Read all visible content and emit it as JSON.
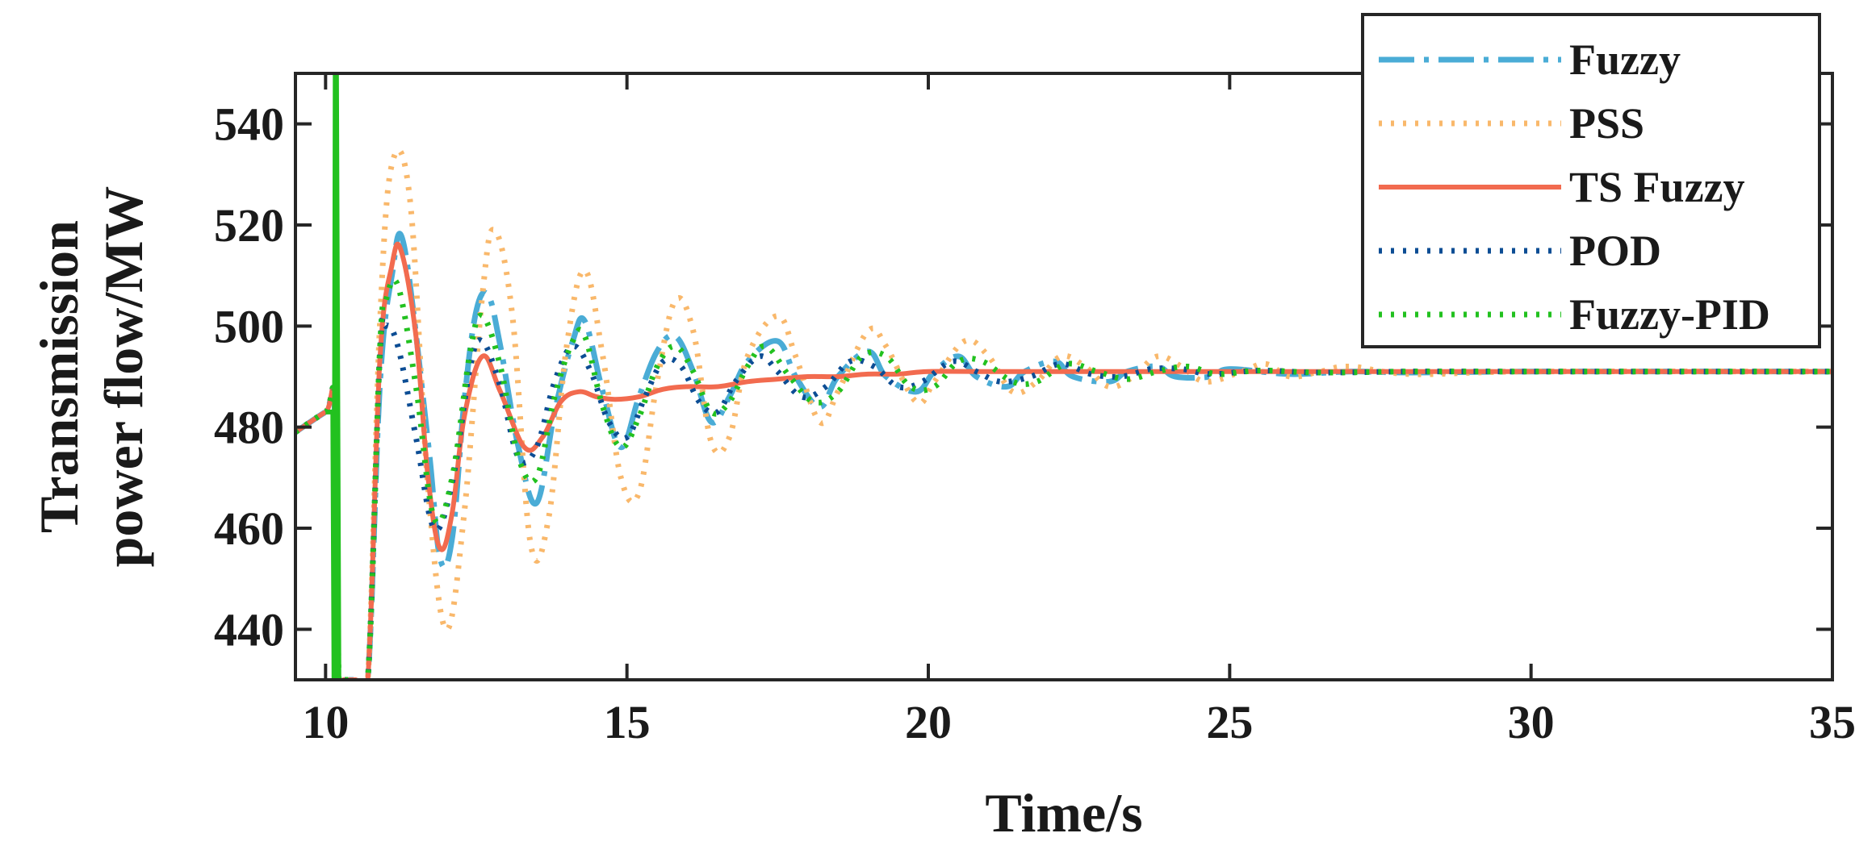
{
  "chart_data": {
    "type": "line",
    "title": "",
    "xlabel": "Time/s",
    "ylabel": [
      "Transmission",
      "power flow/MW"
    ],
    "xlim": [
      9.5,
      35
    ],
    "ylim": [
      430,
      550
    ],
    "xticks": [
      10,
      15,
      20,
      25,
      30,
      35
    ],
    "yticks": [
      440,
      460,
      480,
      500,
      520,
      540
    ],
    "grid": false,
    "legend_position": "top-right",
    "series": [
      {
        "name": "Fuzzy",
        "color": "#4AACD6",
        "style": "dash-dot",
        "x": [
          9.5,
          10.0,
          10.15,
          10.2,
          10.3,
          10.5,
          10.7,
          10.9,
          11.1,
          11.3,
          11.7,
          11.9,
          12.1,
          12.3,
          12.5,
          12.7,
          12.9,
          13.2,
          13.5,
          13.8,
          14.1,
          14.3,
          14.6,
          14.9,
          15.2,
          15.5,
          15.8,
          16.1,
          16.4,
          16.7,
          17.0,
          17.5,
          17.8,
          18.2,
          18.5,
          19.0,
          19.3,
          19.8,
          20.1,
          20.5,
          20.8,
          21.3,
          21.6,
          22.1,
          22.4,
          23.0,
          23.3,
          23.8,
          24.1,
          24.7,
          25.0,
          26.0,
          27.0,
          28.0,
          30.0,
          35.0
        ],
        "values": [
          479.0,
          483.0,
          483.5,
          430.0,
          430.0,
          430.0,
          430.0,
          488.0,
          510.0,
          516.0,
          477.0,
          454.0,
          458.0,
          485.0,
          503.0,
          506.0,
          496.0,
          476.0,
          465.0,
          483.0,
          497.0,
          501.0,
          487.0,
          476.0,
          486.0,
          495.0,
          498.0,
          491.0,
          481.0,
          486.0,
          493.0,
          497.0,
          490.0,
          484.0,
          490.0,
          495.0,
          490.0,
          487.0,
          491.0,
          494.0,
          490.0,
          488.0,
          491.0,
          493.0,
          490.0,
          489.0,
          491.0,
          492.0,
          490.0,
          490.0,
          491.5,
          490.5,
          491.0,
          490.8,
          491.0,
          491.0
        ]
      },
      {
        "name": "PSS",
        "color": "#F9B86B",
        "style": "dotted",
        "x": [
          9.5,
          10.0,
          10.15,
          10.2,
          10.3,
          10.5,
          10.7,
          10.9,
          11.1,
          11.4,
          11.7,
          12.0,
          12.3,
          12.6,
          12.8,
          13.1,
          13.4,
          13.7,
          14.0,
          14.3,
          14.6,
          14.9,
          15.2,
          15.5,
          15.8,
          16.1,
          16.4,
          16.7,
          17.0,
          17.5,
          17.8,
          18.2,
          18.5,
          19.0,
          19.3,
          19.8,
          20.1,
          20.6,
          21.0,
          21.4,
          21.8,
          22.2,
          22.6,
          23.0,
          23.4,
          23.8,
          24.2,
          24.6,
          25.2,
          25.6,
          26.0,
          26.5,
          27.0,
          28.0,
          30.0,
          35.0
        ],
        "values": [
          479.0,
          483.0,
          483.5,
          430.0,
          430.0,
          430.0,
          430.0,
          500.0,
          532.0,
          525.0,
          468.0,
          440.0,
          463.0,
          506.0,
          519.0,
          502.0,
          457.0,
          462.0,
          496.0,
          511.0,
          494.0,
          470.0,
          467.0,
          489.0,
          505.0,
          499.0,
          477.0,
          478.0,
          494.0,
          502.0,
          494.0,
          481.0,
          487.0,
          499.0,
          496.0,
          485.0,
          489.0,
          497.0,
          494.0,
          487.0,
          489.0,
          494.0,
          492.0,
          488.0,
          490.0,
          494.0,
          492.0,
          489.0,
          491.0,
          492.5,
          490.0,
          491.0,
          492.0,
          490.5,
          491.0,
          491.0
        ]
      },
      {
        "name": "TS Fuzzy",
        "color": "#F26B4F",
        "style": "solid",
        "x": [
          9.5,
          10.0,
          10.15,
          10.2,
          10.3,
          10.5,
          10.7,
          10.9,
          11.1,
          11.25,
          11.5,
          11.7,
          11.9,
          12.1,
          12.3,
          12.6,
          12.9,
          13.3,
          13.6,
          13.9,
          14.2,
          14.5,
          14.8,
          15.2,
          15.6,
          16.0,
          16.5,
          17.0,
          17.5,
          18.0,
          18.5,
          19.0,
          19.5,
          20.0,
          21.0,
          22.0,
          23.0,
          24.0,
          25.0,
          27.0,
          30.0,
          35.0
        ],
        "values": [
          479.0,
          483.0,
          483.5,
          430.0,
          430.0,
          430.0,
          430.0,
          493.0,
          512.0,
          515.0,
          498.0,
          470.0,
          456.0,
          463.0,
          482.0,
          494.0,
          487.0,
          476.0,
          478.0,
          485.0,
          487.0,
          486.0,
          485.5,
          486.0,
          487.5,
          488.0,
          488.0,
          489.0,
          489.5,
          490.0,
          490.0,
          490.5,
          490.5,
          491.0,
          491.0,
          491.0,
          491.0,
          491.0,
          491.0,
          491.0,
          491.0,
          491.0
        ]
      },
      {
        "name": "POD",
        "color": "#0C4D94",
        "style": "dotted",
        "x": [
          9.5,
          10.0,
          10.15,
          10.2,
          10.3,
          10.5,
          10.7,
          10.9,
          11.0,
          11.2,
          11.5,
          11.8,
          12.1,
          12.4,
          12.6,
          12.9,
          13.2,
          13.5,
          13.8,
          14.1,
          14.4,
          14.7,
          15.0,
          15.3,
          15.6,
          15.9,
          16.2,
          16.5,
          16.8,
          17.2,
          17.5,
          17.9,
          18.3,
          18.7,
          19.1,
          19.5,
          19.9,
          20.4,
          20.8,
          21.2,
          21.7,
          22.2,
          22.7,
          23.2,
          23.7,
          24.2,
          24.7,
          25.5,
          26.5,
          28.0,
          30.0,
          35.0
        ],
        "values": [
          479.0,
          483.0,
          483.5,
          430.0,
          430.0,
          430.0,
          430.0,
          494.0,
          500.0,
          496.0,
          478.0,
          460.0,
          469.0,
          492.0,
          497.0,
          488.0,
          474.0,
          476.0,
          489.0,
          496.0,
          491.0,
          481.0,
          478.0,
          486.0,
          493.0,
          492.0,
          485.0,
          483.0,
          489.0,
          494.0,
          491.0,
          486.0,
          488.0,
          493.0,
          492.0,
          488.0,
          489.0,
          493.0,
          491.0,
          489.0,
          490.0,
          492.5,
          490.5,
          490.0,
          491.5,
          491.5,
          490.5,
          491.2,
          490.8,
          491.0,
          491.0,
          491.0
        ]
      },
      {
        "name": "Fuzzy-PID",
        "color": "#22C11F",
        "style": "dotted",
        "x": [
          9.5,
          10.0,
          10.15,
          10.22,
          10.3,
          10.5,
          10.7,
          10.9,
          11.0,
          11.2,
          11.5,
          11.8,
          12.1,
          12.4,
          12.6,
          12.9,
          13.2,
          13.5,
          13.8,
          14.1,
          14.3,
          14.6,
          14.9,
          15.2,
          15.5,
          15.8,
          16.1,
          16.4,
          16.7,
          17.0,
          17.3,
          17.7,
          18.1,
          18.5,
          18.9,
          19.3,
          19.7,
          20.1,
          20.5,
          20.9,
          21.4,
          21.8,
          22.3,
          22.8,
          23.3,
          23.8,
          24.3,
          24.8,
          25.5,
          26.5,
          28.0,
          30.0,
          35.0
        ],
        "values": [
          479.0,
          483.0,
          483.5,
          430.0,
          430.0,
          430.0,
          430.0,
          495.0,
          505.0,
          508.0,
          488.0,
          462.0,
          470.0,
          495.0,
          502.0,
          492.0,
          474.0,
          470.0,
          486.0,
          497.0,
          498.0,
          484.0,
          476.0,
          482.0,
          492.0,
          496.0,
          491.0,
          483.0,
          485.0,
          492.0,
          496.0,
          490.0,
          485.0,
          487.0,
          494.0,
          494.0,
          488.0,
          488.0,
          493.0,
          493.0,
          489.0,
          489.0,
          492.5,
          491.0,
          489.5,
          491.0,
          492.0,
          490.5,
          491.2,
          490.8,
          491.0,
          491.0,
          491.0
        ]
      }
    ],
    "spike": {
      "series": "Fuzzy-PID",
      "x": [
        10.0,
        10.12,
        10.14,
        10.16,
        10.18,
        10.22
      ],
      "values": [
        483.0,
        483.0,
        430.0,
        550.0,
        550.0,
        430.0
      ]
    }
  }
}
